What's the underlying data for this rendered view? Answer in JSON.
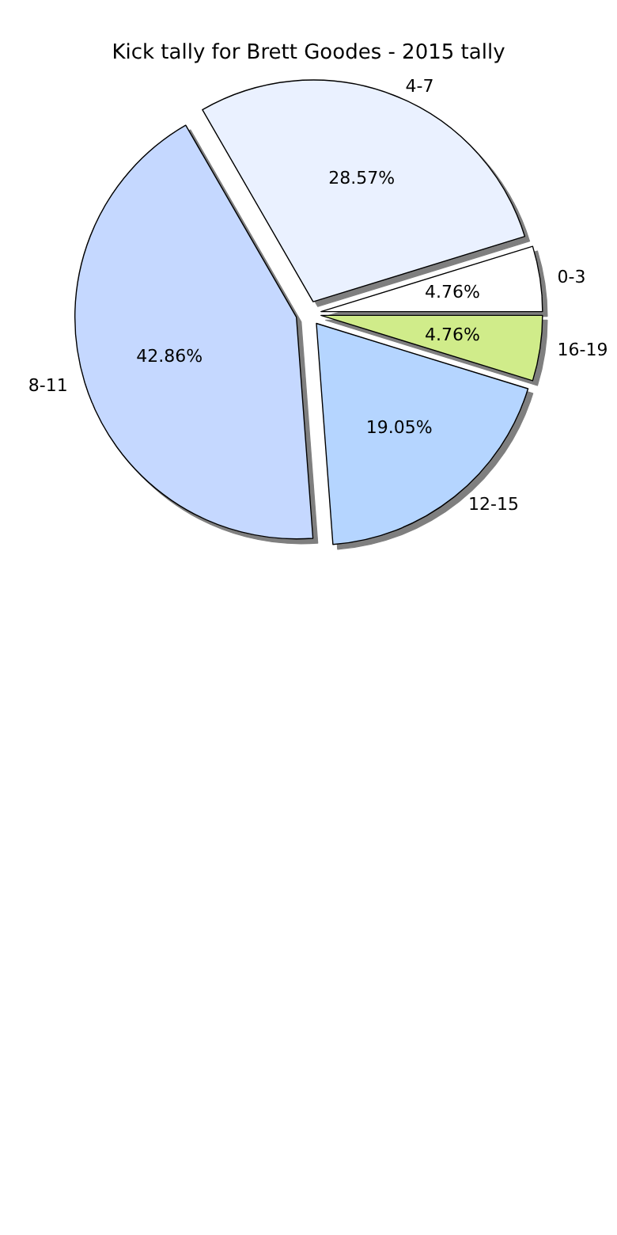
{
  "chart_data": {
    "type": "pie",
    "title": "Kick tally for Brett Goodes - 2015 tally",
    "categories": [
      "0-3",
      "4-7",
      "8-11",
      "12-15",
      "16-19"
    ],
    "values": [
      4.76,
      28.57,
      42.86,
      19.05,
      4.76
    ],
    "value_labels": [
      "4.76%",
      "28.57%",
      "42.86%",
      "19.05%",
      "4.76%"
    ],
    "colors": [
      "#ffffff",
      "#eaf1ff",
      "#c5d8ff",
      "#b5d5ff",
      "#d0ec8a"
    ],
    "legend": false
  }
}
